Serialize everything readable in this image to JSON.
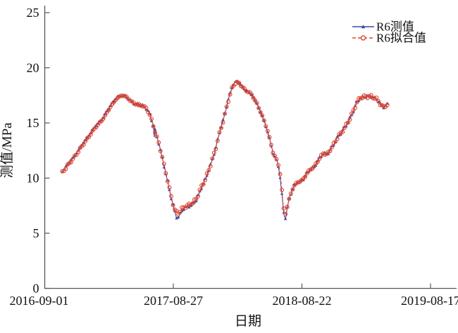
{
  "figure": {
    "background": "#ffffff",
    "axis_color": "#555555",
    "text_color": "#111111"
  },
  "chart_data": {
    "type": "line",
    "title": "",
    "xlabel": "日期",
    "ylabel": "测值/MPa",
    "x_start_date": "2016-09-01",
    "x_ticks": [
      "2016-09-01",
      "2017-08-27",
      "2018-08-22",
      "2019-08-17"
    ],
    "x_tick_days": [
      0,
      360,
      720,
      1080
    ],
    "xlim_days": [
      0,
      1153
    ],
    "y_ticks": [
      0,
      5,
      10,
      15,
      20,
      25
    ],
    "ylim": [
      0,
      25
    ],
    "grid": false,
    "legend_position": "top-right",
    "series": [
      {
        "name": "R6测值",
        "color": "#3b4a9f",
        "line": "solid",
        "marker": "triangle",
        "x_days": [
          49,
          63,
          83,
          102,
          122,
          142,
          162,
          175,
          187,
          201,
          215,
          228,
          240,
          255,
          270,
          283,
          292,
          300,
          305,
          306,
          307,
          308,
          319,
          329,
          339,
          348,
          357,
          365,
          370,
          376,
          386,
          400,
          412,
          424,
          437,
          451,
          463,
          477,
          487,
          497,
          506,
          516,
          526,
          536,
          548,
          560,
          572,
          583,
          593,
          603,
          613,
          623,
          632,
          640,
          648,
          654,
          658,
          662,
          666,
          670,
          673,
          678,
          683,
          690,
          698,
          706,
          716,
          726,
          735,
          744,
          754,
          763,
          772,
          780,
          788,
          796,
          804,
          813,
          822,
          832,
          842,
          851,
          860,
          869,
          876,
          884,
          898,
          914,
          928,
          938,
          948,
          956,
          959
        ],
        "values": [
          10.6,
          11.2,
          12.0,
          12.9,
          13.8,
          14.7,
          15.4,
          16.1,
          16.7,
          17.3,
          17.5,
          17.4,
          17.0,
          16.7,
          16.6,
          16.4,
          15.9,
          15.2,
          14.7,
          15.1,
          12.4,
          14.4,
          13.2,
          11.8,
          10.4,
          9.1,
          7.8,
          6.8,
          6.4,
          6.5,
          7.2,
          7.4,
          7.6,
          8.0,
          9.0,
          10.0,
          11.1,
          12.5,
          13.9,
          15.0,
          16.1,
          17.4,
          18.4,
          18.8,
          18.5,
          18.0,
          17.8,
          17.4,
          16.8,
          16.1,
          15.3,
          14.3,
          13.2,
          12.1,
          11.7,
          11.1,
          10.3,
          9.2,
          7.8,
          6.6,
          6.2,
          7.1,
          8.0,
          8.7,
          9.3,
          9.6,
          9.7,
          10.0,
          10.5,
          10.8,
          11.0,
          11.5,
          11.9,
          12.3,
          12.1,
          12.4,
          12.8,
          13.3,
          13.8,
          14.2,
          14.7,
          15.2,
          15.8,
          16.5,
          17.0,
          17.3,
          17.4,
          17.4,
          17.2,
          16.8,
          16.4,
          16.6,
          16.7
        ]
      },
      {
        "name": "R6拟合值",
        "color": "#e5472e",
        "line": "dashed",
        "marker": "circle",
        "x_days": [
          49,
          63,
          83,
          102,
          122,
          142,
          162,
          175,
          187,
          201,
          215,
          228,
          240,
          255,
          270,
          283,
          292,
          300,
          307,
          319,
          329,
          339,
          348,
          357,
          365,
          374,
          386,
          400,
          412,
          424,
          437,
          451,
          463,
          477,
          487,
          497,
          506,
          516,
          526,
          536,
          548,
          560,
          572,
          583,
          593,
          603,
          613,
          623,
          632,
          640,
          648,
          654,
          660,
          664,
          668,
          672,
          677,
          683,
          690,
          698,
          706,
          716,
          726,
          735,
          744,
          754,
          763,
          772,
          780,
          788,
          796,
          804,
          813,
          822,
          832,
          842,
          851,
          860,
          869,
          876,
          884,
          898,
          914,
          928,
          938,
          948,
          956,
          959
        ],
        "values": [
          10.5,
          11.1,
          11.9,
          12.8,
          13.7,
          14.6,
          15.3,
          16.0,
          16.6,
          17.2,
          17.5,
          17.4,
          17.0,
          16.7,
          16.6,
          16.4,
          15.9,
          15.2,
          14.4,
          13.2,
          11.9,
          10.5,
          9.2,
          7.9,
          7.0,
          6.8,
          7.3,
          7.5,
          7.7,
          8.1,
          9.1,
          10.0,
          11.1,
          12.5,
          13.8,
          14.9,
          16.0,
          17.3,
          18.3,
          18.7,
          18.5,
          18.0,
          17.8,
          17.4,
          16.8,
          16.1,
          15.3,
          14.4,
          13.3,
          12.2,
          11.8,
          11.2,
          10.2,
          8.9,
          7.5,
          6.5,
          7.1,
          8.0,
          8.7,
          9.3,
          9.6,
          9.7,
          10.0,
          10.5,
          10.8,
          11.0,
          11.5,
          11.9,
          12.3,
          12.1,
          12.4,
          12.8,
          13.3,
          13.8,
          14.2,
          14.7,
          15.2,
          15.8,
          16.5,
          17.0,
          17.3,
          17.4,
          17.4,
          17.2,
          16.8,
          16.4,
          16.6,
          16.7
        ]
      }
    ]
  },
  "legend": {
    "entries": [
      {
        "label": "R6测值"
      },
      {
        "label": "R6拟合值"
      }
    ]
  }
}
